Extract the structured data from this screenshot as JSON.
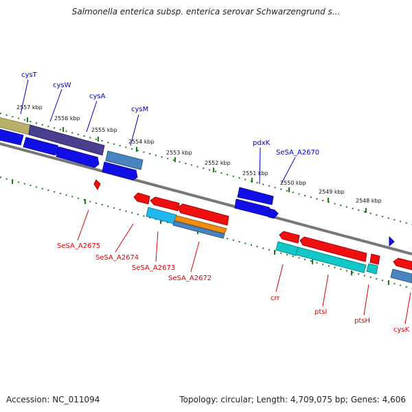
{
  "title": "Salmonella enterica subsp. enterica serovar Schwarzengrund s...",
  "footer": {
    "accession": "Accession: NC_011094",
    "topology": "Topology: circular; Length: 4,709,075 bp; Genes: 4,606"
  },
  "colors": {
    "backbone": "#777777",
    "tick": "#1a7a1a",
    "top_label": "#0000cc",
    "bottom_label": "#dd0000",
    "ruler_label": "#111111"
  },
  "ruler_labels": [
    "2557 kbp",
    "2556 kbp",
    "2555 kbp",
    "2554 kbp",
    "2553 kbp",
    "2552 kbp",
    "2551 kbp",
    "2550 kbp",
    "2549 kbp",
    "2548 kbp"
  ],
  "top_gene_labels": [
    "cysT",
    "cysW",
    "cysA",
    "cysM",
    "pdxK",
    "SeSA_A2670"
  ],
  "bottom_gene_labels": [
    "SeSA_A2675",
    "SeSA_A2674",
    "SeSA_A2673",
    "SeSA_A2672",
    "crr",
    "ptsI",
    "ptsH",
    "cysK"
  ]
}
